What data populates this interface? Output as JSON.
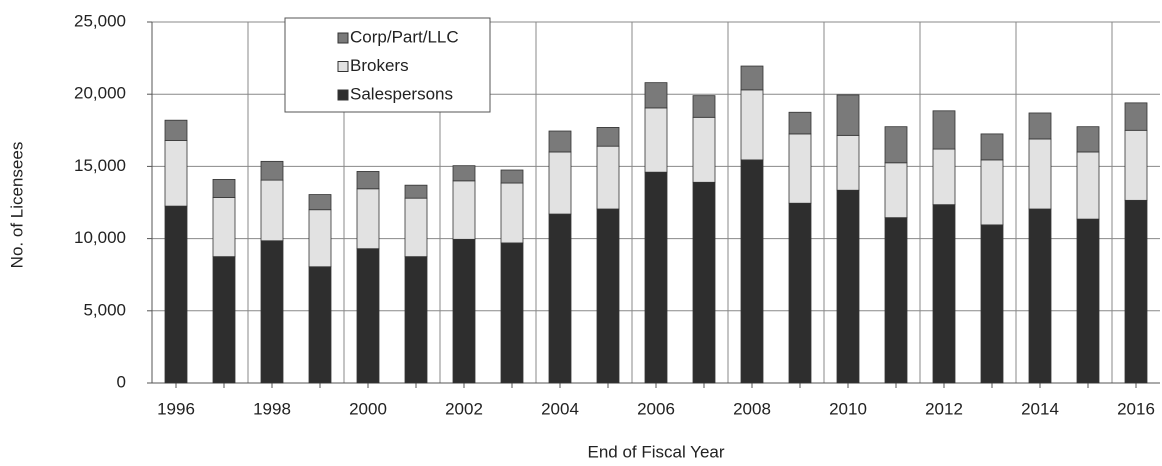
{
  "chart_data": {
    "type": "stacked_bar",
    "x_label": "End of Fiscal Year",
    "y_label": "No. of Licensees",
    "categories": [
      "1996",
      null,
      "1998",
      null,
      "2000",
      null,
      "2002",
      null,
      "2004",
      null,
      "2006",
      null,
      "2008",
      null,
      "2010",
      null,
      "2012",
      null,
      "2014",
      null,
      "2016"
    ],
    "series": [
      {
        "name": "Salespersons",
        "color": "#2e2e2e",
        "values": [
          12250,
          8750,
          9850,
          8050,
          9300,
          8750,
          9950,
          9700,
          11700,
          12050,
          14600,
          13900,
          15450,
          12450,
          13350,
          11450,
          12350,
          10950,
          12050,
          11350,
          12650
        ]
      },
      {
        "name": "Brokers",
        "color": "#e2e2e2",
        "values": [
          4550,
          4100,
          4200,
          3950,
          4150,
          4050,
          4050,
          4150,
          4300,
          4350,
          4450,
          4500,
          4850,
          4800,
          3800,
          3800,
          3850,
          4500,
          4850,
          4650,
          4850
        ]
      },
      {
        "name": "Corp/Part/LLC",
        "color": "#7a7a7a",
        "values": [
          1400,
          1250,
          1300,
          1050,
          1200,
          900,
          1050,
          900,
          1450,
          1300,
          1750,
          1500,
          1650,
          1500,
          2800,
          2500,
          2650,
          1800,
          1800,
          1750,
          1900
        ]
      }
    ],
    "ylim": [
      0,
      25000
    ],
    "yticks": [
      0,
      {
        "value": 5000,
        "label": "5,000"
      },
      {
        "value": 10000,
        "label": "10,000"
      },
      {
        "value": 15000,
        "label": "15,000"
      },
      {
        "value": 20000,
        "label": "20,000"
      },
      {
        "value": 25000,
        "label": "25,000"
      }
    ],
    "grid": true,
    "legend": "top-left"
  }
}
